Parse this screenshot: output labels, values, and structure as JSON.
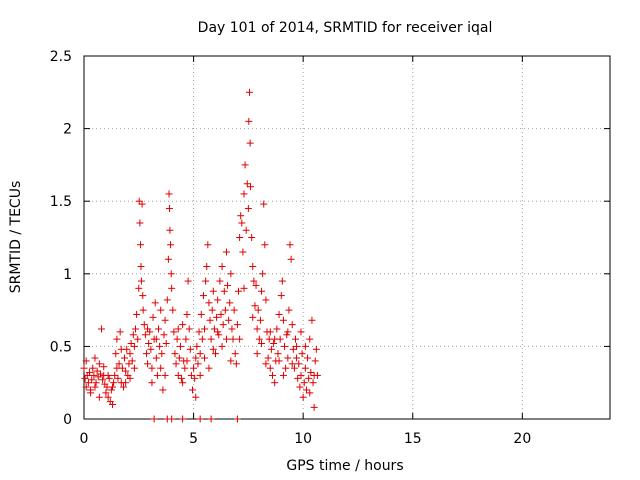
{
  "chart_data": {
    "type": "scatter",
    "title": "Day 101 of 2014, SRMTID for receiver iqal",
    "xlabel": "GPS time / hours",
    "ylabel": "SRMTID / TECUs",
    "xlim": [
      0,
      24
    ],
    "ylim": [
      0,
      2.5
    ],
    "x_ticks": [
      0,
      5,
      10,
      15,
      20
    ],
    "y_ticks": [
      0,
      0.5,
      1,
      1.5,
      2,
      2.5
    ],
    "x_tick_labels": [
      "0",
      "5",
      "10",
      "15",
      "20"
    ],
    "y_tick_labels": [
      "0",
      "0.5",
      "1",
      "1.5",
      "2",
      "2.5"
    ],
    "grid": true,
    "marker": "+",
    "marker_color": "#e00000",
    "series": [
      {
        "name": "SRMTID",
        "points": [
          [
            0.0,
            0.35
          ],
          [
            0.05,
            0.28
          ],
          [
            0.1,
            0.22
          ],
          [
            0.15,
            0.3
          ],
          [
            0.2,
            0.25
          ],
          [
            0.25,
            0.32
          ],
          [
            0.3,
            0.2
          ],
          [
            0.35,
            0.27
          ],
          [
            0.4,
            0.35
          ],
          [
            0.45,
            0.3
          ],
          [
            0.5,
            0.42
          ],
          [
            0.55,
            0.25
          ],
          [
            0.6,
            0.33
          ],
          [
            0.65,
            0.29
          ],
          [
            0.7,
            0.38
          ],
          [
            0.75,
            0.31
          ],
          [
            0.8,
            0.62
          ],
          [
            0.85,
            0.27
          ],
          [
            0.9,
            0.3
          ],
          [
            0.95,
            0.24
          ],
          [
            1.0,
            0.18
          ],
          [
            1.05,
            0.22
          ],
          [
            1.1,
            0.15
          ],
          [
            1.15,
            0.28
          ],
          [
            1.2,
            0.12
          ],
          [
            1.25,
            0.2
          ],
          [
            1.3,
            0.1
          ],
          [
            1.35,
            0.25
          ],
          [
            1.4,
            0.3
          ],
          [
            1.45,
            0.45
          ],
          [
            1.5,
            0.55
          ],
          [
            1.55,
            0.28
          ],
          [
            1.6,
            0.38
          ],
          [
            1.65,
            0.6
          ],
          [
            1.7,
            0.25
          ],
          [
            1.75,
            0.35
          ],
          [
            1.8,
            0.22
          ],
          [
            1.85,
            0.42
          ],
          [
            1.9,
            0.33
          ],
          [
            1.95,
            0.48
          ],
          [
            2.0,
            0.3
          ],
          [
            2.05,
            0.38
          ],
          [
            2.1,
            0.45
          ],
          [
            2.15,
            0.52
          ],
          [
            2.2,
            0.4
          ],
          [
            2.25,
            0.58
          ],
          [
            2.3,
            0.35
          ],
          [
            2.35,
            0.62
          ],
          [
            2.4,
            0.72
          ],
          [
            2.45,
            0.55
          ],
          [
            2.5,
            0.9
          ],
          [
            2.52,
            1.5
          ],
          [
            2.55,
            1.35
          ],
          [
            2.58,
            1.2
          ],
          [
            2.6,
            1.05
          ],
          [
            2.62,
            0.95
          ],
          [
            2.65,
            1.48
          ],
          [
            2.68,
            0.85
          ],
          [
            2.7,
            0.75
          ],
          [
            2.75,
            0.65
          ],
          [
            2.8,
            0.58
          ],
          [
            2.85,
            0.45
          ],
          [
            2.9,
            0.38
          ],
          [
            2.95,
            0.52
          ],
          [
            3.0,
            0.6
          ],
          [
            3.05,
            0.48
          ],
          [
            3.1,
            0.35
          ],
          [
            3.15,
            0.7
          ],
          [
            3.2,
            0.55
          ],
          [
            3.25,
            0.8
          ],
          [
            3.3,
            0.42
          ],
          [
            3.35,
            0.3
          ],
          [
            3.4,
            0.62
          ],
          [
            3.45,
            0.5
          ],
          [
            3.5,
            0.75
          ],
          [
            3.55,
            0.45
          ],
          [
            3.6,
            0.2
          ],
          [
            3.65,
            0.58
          ],
          [
            3.7,
            0.68
          ],
          [
            3.75,
            0.52
          ],
          [
            3.8,
            0.82
          ],
          [
            3.85,
            1.1
          ],
          [
            3.88,
            1.55
          ],
          [
            3.9,
            1.45
          ],
          [
            3.92,
            1.3
          ],
          [
            3.95,
            1.2
          ],
          [
            3.98,
            1.0
          ],
          [
            4.0,
            0.9
          ],
          [
            4.05,
            0.75
          ],
          [
            4.1,
            0.6
          ],
          [
            4.15,
            0.45
          ],
          [
            4.2,
            0.38
          ],
          [
            4.25,
            0.55
          ],
          [
            4.3,
            0.3
          ],
          [
            4.35,
            0.42
          ],
          [
            4.4,
            0.5
          ],
          [
            4.45,
            0.28
          ],
          [
            4.5,
            0.65
          ],
          [
            4.55,
            0.4
          ],
          [
            4.6,
            0.35
          ],
          [
            4.65,
            0.55
          ],
          [
            4.7,
            0.72
          ],
          [
            4.75,
            0.95
          ],
          [
            4.8,
            0.62
          ],
          [
            4.85,
            0.48
          ],
          [
            4.9,
            0.3
          ],
          [
            4.95,
            0.2
          ],
          [
            5.0,
            0.35
          ],
          [
            5.05,
            0.28
          ],
          [
            5.1,
            0.42
          ],
          [
            5.15,
            0.5
          ],
          [
            5.2,
            0.38
          ],
          [
            5.25,
            0.6
          ],
          [
            5.3,
            0.45
          ],
          [
            5.35,
            0.72
          ],
          [
            5.4,
            0.55
          ],
          [
            5.45,
            0.85
          ],
          [
            5.5,
            0.62
          ],
          [
            5.55,
            0.95
          ],
          [
            5.6,
            1.05
          ],
          [
            5.65,
            1.2
          ],
          [
            5.7,
            0.8
          ],
          [
            5.75,
            0.68
          ],
          [
            5.8,
            0.55
          ],
          [
            5.85,
            0.75
          ],
          [
            5.9,
            0.88
          ],
          [
            5.95,
            0.62
          ],
          [
            6.0,
            0.45
          ],
          [
            6.05,
            0.7
          ],
          [
            6.1,
            0.82
          ],
          [
            6.15,
            0.58
          ],
          [
            6.2,
            0.95
          ],
          [
            6.25,
            0.72
          ],
          [
            6.3,
            1.05
          ],
          [
            6.35,
            0.65
          ],
          [
            6.4,
            0.88
          ],
          [
            6.45,
            0.75
          ],
          [
            6.5,
            1.15
          ],
          [
            6.55,
            0.92
          ],
          [
            6.6,
            0.68
          ],
          [
            6.65,
            0.8
          ],
          [
            6.7,
            1.0
          ],
          [
            6.75,
            0.62
          ],
          [
            6.8,
            0.55
          ],
          [
            6.85,
            0.75
          ],
          [
            6.9,
            0.45
          ],
          [
            6.95,
            0.38
          ],
          [
            7.0,
            0.65
          ],
          [
            7.05,
            0.88
          ],
          [
            7.1,
            1.25
          ],
          [
            7.15,
            1.4
          ],
          [
            7.2,
            1.35
          ],
          [
            7.25,
            1.15
          ],
          [
            7.3,
            1.55
          ],
          [
            7.35,
            1.75
          ],
          [
            7.4,
            1.3
          ],
          [
            7.45,
            1.62
          ],
          [
            7.5,
            1.45
          ],
          [
            7.52,
            2.05
          ],
          [
            7.55,
            2.25
          ],
          [
            7.58,
            1.9
          ],
          [
            7.6,
            1.6
          ],
          [
            7.65,
            1.25
          ],
          [
            7.7,
            1.05
          ],
          [
            7.75,
            0.95
          ],
          [
            7.8,
            0.78
          ],
          [
            7.85,
            0.92
          ],
          [
            7.9,
            0.62
          ],
          [
            7.95,
            0.75
          ],
          [
            8.0,
            0.55
          ],
          [
            8.05,
            0.68
          ],
          [
            8.1,
            0.88
          ],
          [
            8.15,
            1.0
          ],
          [
            8.2,
            1.48
          ],
          [
            8.25,
            1.2
          ],
          [
            8.3,
            0.82
          ],
          [
            8.35,
            0.6
          ],
          [
            8.4,
            0.42
          ],
          [
            8.45,
            0.55
          ],
          [
            8.5,
            0.35
          ],
          [
            8.55,
            0.48
          ],
          [
            8.6,
            0.3
          ],
          [
            8.65,
            0.52
          ],
          [
            8.7,
            0.25
          ],
          [
            8.75,
            0.4
          ],
          [
            8.8,
            0.62
          ],
          [
            8.85,
            0.45
          ],
          [
            8.9,
            0.72
          ],
          [
            8.95,
            0.55
          ],
          [
            9.0,
            0.85
          ],
          [
            9.05,
            0.95
          ],
          [
            9.1,
            0.68
          ],
          [
            9.15,
            0.5
          ],
          [
            9.2,
            0.35
          ],
          [
            9.25,
            0.58
          ],
          [
            9.3,
            0.42
          ],
          [
            9.35,
            0.75
          ],
          [
            9.4,
            1.2
          ],
          [
            9.45,
            1.1
          ],
          [
            9.5,
            0.65
          ],
          [
            9.55,
            0.48
          ],
          [
            9.6,
            0.35
          ],
          [
            9.65,
            0.55
          ],
          [
            9.7,
            0.42
          ],
          [
            9.75,
            0.28
          ],
          [
            9.8,
            0.38
          ],
          [
            9.85,
            0.22
          ],
          [
            9.9,
            0.3
          ],
          [
            9.95,
            0.45
          ],
          [
            10.0,
            0.15
          ],
          [
            10.05,
            0.25
          ],
          [
            10.1,
            0.35
          ],
          [
            10.15,
            0.2
          ],
          [
            10.2,
            0.42
          ],
          [
            10.25,
            0.28
          ],
          [
            10.3,
            0.55
          ],
          [
            10.35,
            0.32
          ],
          [
            10.4,
            0.68
          ],
          [
            10.45,
            0.25
          ],
          [
            10.5,
            0.08
          ],
          [
            10.55,
            0.4
          ],
          [
            10.6,
            0.48
          ],
          [
            10.65,
            0.3
          ],
          [
            0.1,
            0.4
          ],
          [
            0.3,
            0.18
          ],
          [
            0.5,
            0.22
          ],
          [
            0.7,
            0.15
          ],
          [
            0.9,
            0.36
          ],
          [
            1.1,
            0.3
          ],
          [
            1.3,
            0.22
          ],
          [
            1.5,
            0.35
          ],
          [
            1.7,
            0.48
          ],
          [
            1.9,
            0.25
          ],
          [
            2.1,
            0.28
          ],
          [
            2.3,
            0.5
          ],
          [
            2.9,
            0.62
          ],
          [
            3.1,
            0.25
          ],
          [
            3.3,
            0.55
          ],
          [
            3.5,
            0.35
          ],
          [
            3.7,
            0.3
          ],
          [
            4.3,
            0.62
          ],
          [
            4.5,
            0.25
          ],
          [
            4.7,
            0.4
          ],
          [
            5.1,
            0.15
          ],
          [
            5.3,
            0.3
          ],
          [
            5.5,
            0.42
          ],
          [
            5.7,
            0.35
          ],
          [
            5.9,
            0.48
          ],
          [
            6.1,
            0.6
          ],
          [
            6.3,
            0.5
          ],
          [
            6.5,
            0.55
          ],
          [
            6.7,
            0.4
          ],
          [
            7.1,
            0.55
          ],
          [
            7.3,
            0.9
          ],
          [
            7.7,
            0.7
          ],
          [
            7.9,
            0.45
          ],
          [
            8.1,
            0.52
          ],
          [
            8.3,
            0.38
          ],
          [
            8.5,
            0.6
          ],
          [
            8.7,
            0.55
          ],
          [
            8.9,
            0.4
          ],
          [
            9.1,
            0.3
          ],
          [
            9.3,
            0.6
          ],
          [
            9.5,
            0.38
          ],
          [
            9.7,
            0.5
          ],
          [
            9.9,
            0.6
          ],
          [
            10.1,
            0.5
          ],
          [
            10.3,
            0.18
          ],
          [
            10.5,
            0.3
          ],
          [
            3.2,
            0.0
          ],
          [
            3.8,
            0.0
          ],
          [
            4.0,
            0.0
          ],
          [
            4.5,
            0.0
          ],
          [
            5.3,
            0.0
          ],
          [
            5.8,
            0.0
          ],
          [
            7.0,
            0.0
          ]
        ]
      }
    ]
  }
}
